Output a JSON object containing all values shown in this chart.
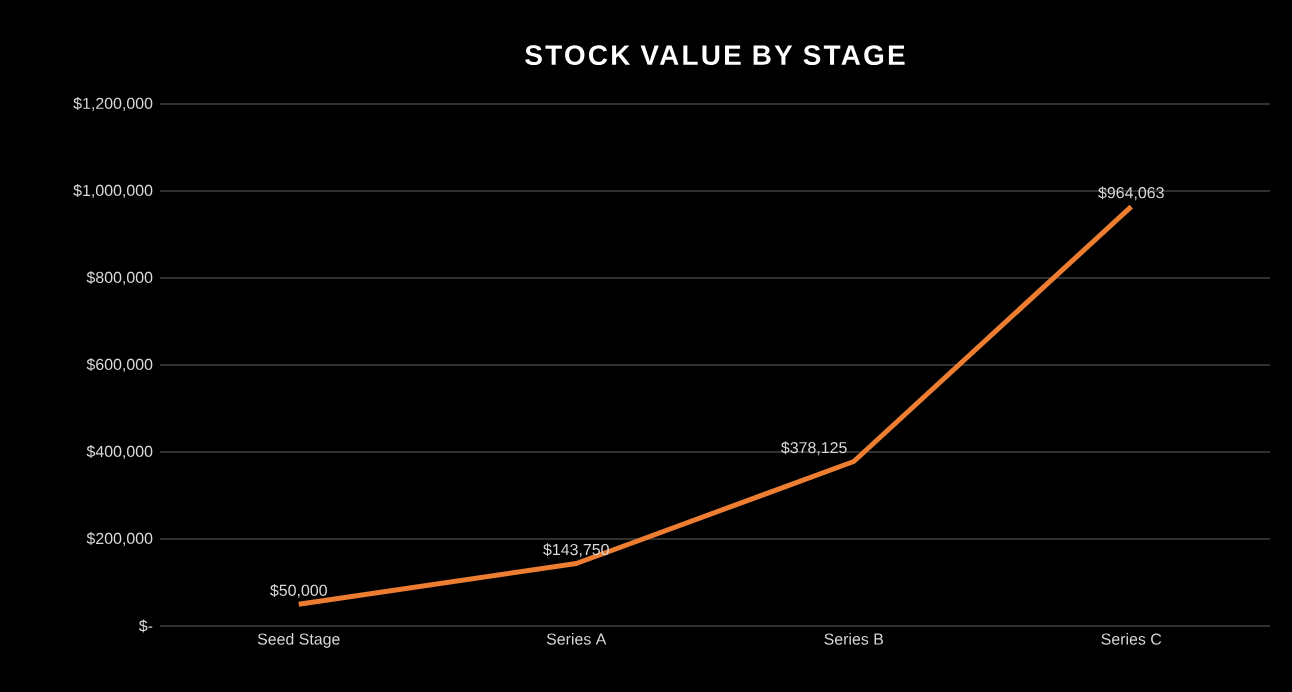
{
  "chart_data": {
    "type": "line",
    "title": "STOCK VALUE BY STAGE",
    "categories": [
      "Seed Stage",
      "Series A",
      "Series B",
      "Series C"
    ],
    "values": [
      50000,
      143750,
      378125,
      964063
    ],
    "value_labels": [
      "$50,000",
      "$143,750",
      "$378,125",
      "$964,063"
    ],
    "color": "#ed7d31",
    "ylim": [
      0,
      1200000
    ],
    "yticks": [
      {
        "value": 0,
        "label": "$-"
      },
      {
        "value": 200000,
        "label": "$200,000"
      },
      {
        "value": 400000,
        "label": "$400,000"
      },
      {
        "value": 600000,
        "label": "$600,000"
      },
      {
        "value": 800000,
        "label": "$800,000"
      },
      {
        "value": 1000000,
        "label": "$1,000,000"
      },
      {
        "value": 1200000,
        "label": "$1,200,000"
      }
    ],
    "grid": "y",
    "line_style": "solid"
  }
}
